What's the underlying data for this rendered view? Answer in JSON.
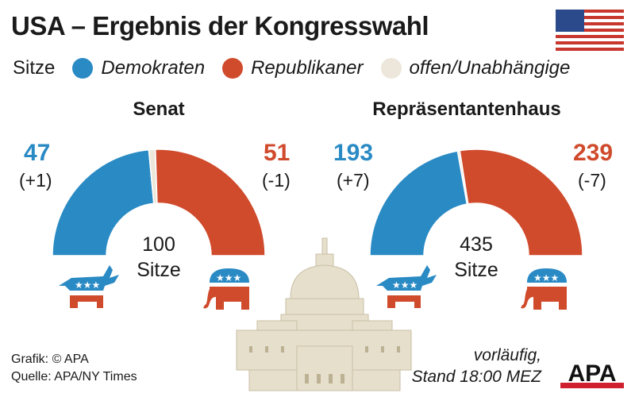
{
  "header": {
    "title": "USA – Ergebnis der Kongresswahl",
    "flag_icon": "us-flag-icon"
  },
  "legend": {
    "label": "Sitze",
    "items": [
      {
        "label": "Demokraten",
        "color": "#2a8ac4"
      },
      {
        "label": "Republikaner",
        "color": "#d04a2c"
      },
      {
        "label": "offen/Unabhängige",
        "color": "#ede6da"
      }
    ]
  },
  "chart_data": [
    {
      "type": "pie",
      "variant": "half-donut",
      "title": "Senat",
      "total": 100,
      "total_label": "Sitze",
      "categories": [
        "Demokraten",
        "offen/Unabhängige",
        "Republikaner"
      ],
      "values": [
        47,
        2,
        51
      ],
      "changes": [
        "(+1)",
        null,
        "(-1)"
      ],
      "colors": [
        "#2a8ac4",
        "#ede6da",
        "#d04a2c"
      ]
    },
    {
      "type": "pie",
      "variant": "half-donut",
      "title": "Repräsentantenhaus",
      "total": 435,
      "total_label": "Sitze",
      "categories": [
        "Demokraten",
        "offen/Unabhängige",
        "Republikaner"
      ],
      "values": [
        193,
        3,
        239
      ],
      "changes": [
        "(+7)",
        null,
        "(-7)"
      ],
      "colors": [
        "#2a8ac4",
        "#ede6da",
        "#d04a2c"
      ]
    }
  ],
  "footer": {
    "credit": "Grafik: © APA",
    "source": "Quelle: APA/NY Times",
    "note_line1": "vorläufig,",
    "note_line2": "Stand 18:00 MEZ",
    "logo": "APA"
  }
}
